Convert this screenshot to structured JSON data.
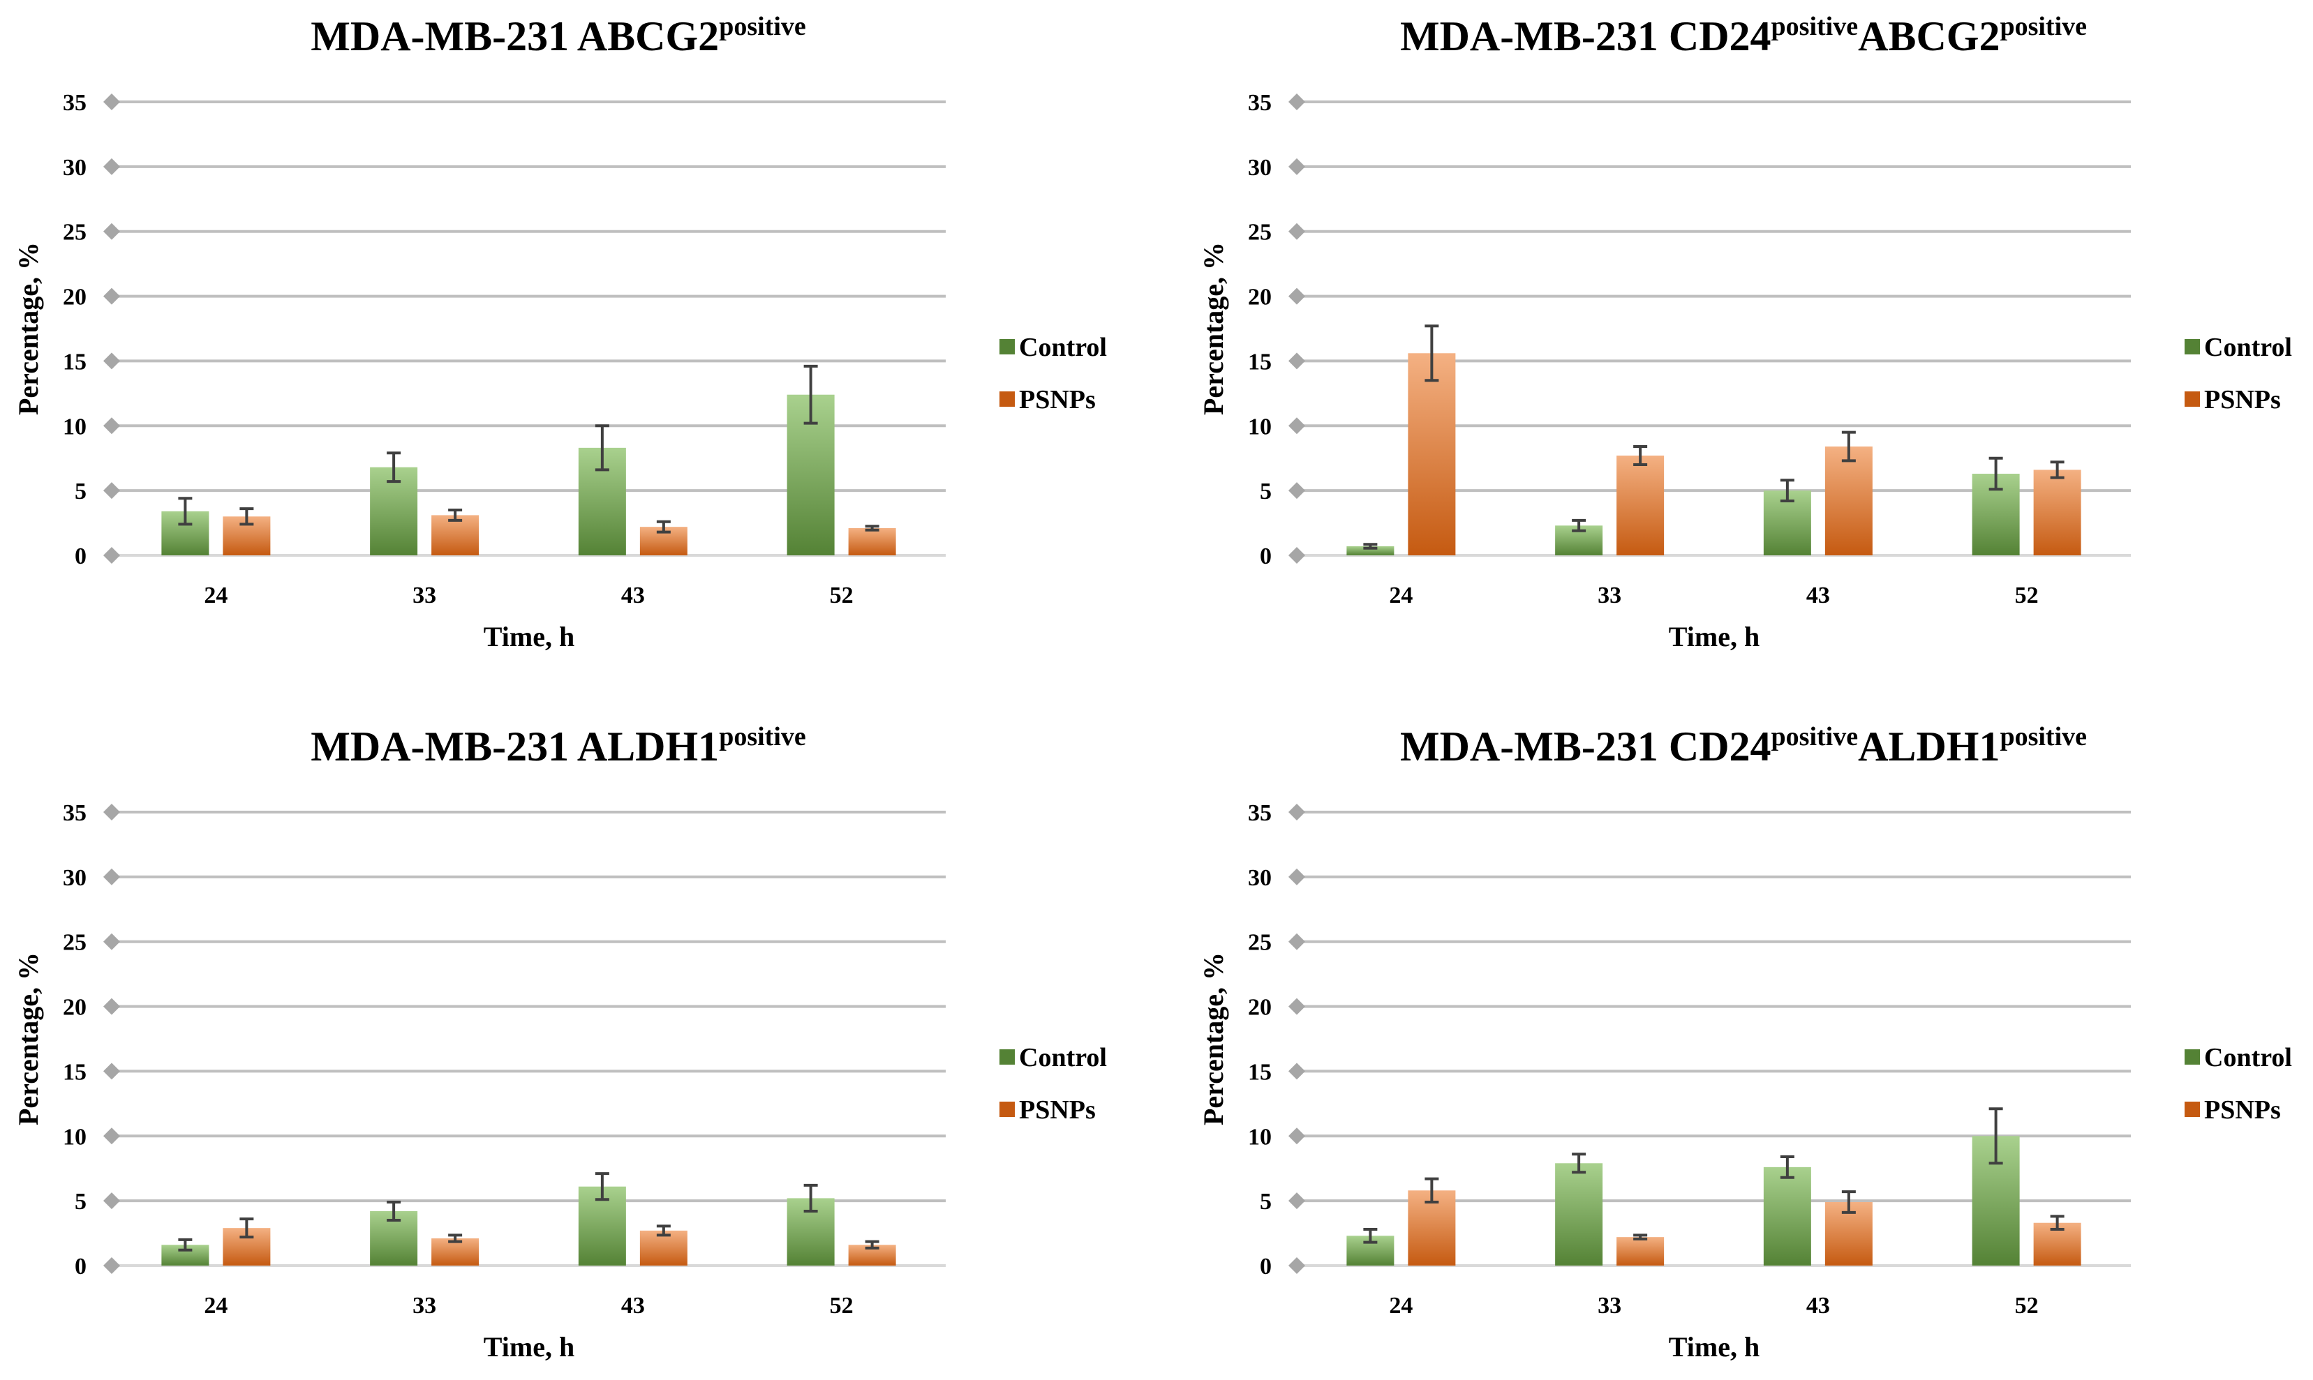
{
  "colors": {
    "control_light": "#a9d18e",
    "control_dark": "#548235",
    "psnps_light": "#f4b183",
    "psnps_dark": "#c55a11",
    "grid": "#bfbfbf",
    "tick_marker": "#a6a6a6",
    "error_bar": "#404040"
  },
  "chart_data": [
    {
      "type": "bar",
      "title": "MDA-MB-231  ABCG2",
      "title_superscripts": [
        "positive"
      ],
      "title_parts": [
        {
          "text": "MDA-MB-231  ABCG2",
          "sup": false
        },
        {
          "text": "positive",
          "sup": true
        }
      ],
      "xlabel": "Time, h",
      "ylabel": "Percentage, %",
      "categories": [
        "24",
        "33",
        "43",
        "52"
      ],
      "ylim": [
        0,
        35
      ],
      "yticks": [
        0,
        5,
        10,
        15,
        20,
        25,
        30,
        35
      ],
      "grid": true,
      "legend_position": "right",
      "series": [
        {
          "name": "Control",
          "values": [
            3.4,
            6.8,
            8.3,
            12.4
          ],
          "errors": [
            1.0,
            1.1,
            1.7,
            2.2
          ]
        },
        {
          "name": "PSNPs",
          "values": [
            3.0,
            3.1,
            2.2,
            2.1
          ],
          "errors": [
            0.6,
            0.4,
            0.4,
            0.15
          ]
        }
      ]
    },
    {
      "type": "bar",
      "title": "MDA-MB-231  CD24positiveABCG2positive",
      "title_superscripts": [
        "positive",
        "positive"
      ],
      "title_parts": [
        {
          "text": "MDA-MB-231  CD24",
          "sup": false
        },
        {
          "text": "positive",
          "sup": true
        },
        {
          "text": "ABCG2",
          "sup": false
        },
        {
          "text": "positive",
          "sup": true
        }
      ],
      "xlabel": "Time, h",
      "ylabel": "Percentage, %",
      "categories": [
        "24",
        "33",
        "43",
        "52"
      ],
      "ylim": [
        0,
        35
      ],
      "yticks": [
        0,
        5,
        10,
        15,
        20,
        25,
        30,
        35
      ],
      "grid": true,
      "legend_position": "right",
      "series": [
        {
          "name": "Control",
          "values": [
            0.7,
            2.3,
            5.0,
            6.3
          ],
          "errors": [
            0.15,
            0.4,
            0.8,
            1.2
          ]
        },
        {
          "name": "PSNPs",
          "values": [
            15.6,
            7.7,
            8.4,
            6.6
          ],
          "errors": [
            2.1,
            0.7,
            1.1,
            0.6
          ]
        }
      ]
    },
    {
      "type": "bar",
      "title": "MDA-MB-231  ALDH1",
      "title_superscripts": [
        "positive"
      ],
      "title_parts": [
        {
          "text": "MDA-MB-231  ALDH1",
          "sup": false
        },
        {
          "text": "positive",
          "sup": true
        }
      ],
      "xlabel": "Time, h",
      "ylabel": "Percentage, %",
      "categories": [
        "24",
        "33",
        "43",
        "52"
      ],
      "ylim": [
        0,
        35
      ],
      "yticks": [
        0,
        5,
        10,
        15,
        20,
        25,
        30,
        35
      ],
      "grid": true,
      "legend_position": "right",
      "series": [
        {
          "name": "Control",
          "values": [
            1.6,
            4.2,
            6.1,
            5.2
          ],
          "errors": [
            0.4,
            0.7,
            1.0,
            1.0
          ]
        },
        {
          "name": "PSNPs",
          "values": [
            2.9,
            2.1,
            2.7,
            1.6
          ],
          "errors": [
            0.7,
            0.25,
            0.35,
            0.25
          ]
        }
      ]
    },
    {
      "type": "bar",
      "title": "MDA-MB-231  CD24positiveALDH1positive",
      "title_superscripts": [
        "positive",
        "positive"
      ],
      "title_parts": [
        {
          "text": "MDA-MB-231  CD24",
          "sup": false
        },
        {
          "text": "positive",
          "sup": true
        },
        {
          "text": "ALDH1",
          "sup": false
        },
        {
          "text": "positive",
          "sup": true
        }
      ],
      "xlabel": "Time, h",
      "ylabel": "Percentage, %",
      "categories": [
        "24",
        "33",
        "43",
        "52"
      ],
      "ylim": [
        0,
        35
      ],
      "yticks": [
        0,
        5,
        10,
        15,
        20,
        25,
        30,
        35
      ],
      "grid": true,
      "legend_position": "right",
      "series": [
        {
          "name": "Control",
          "values": [
            2.3,
            7.9,
            7.6,
            10.0
          ],
          "errors": [
            0.5,
            0.7,
            0.8,
            2.1
          ]
        },
        {
          "name": "PSNPs",
          "values": [
            5.8,
            2.2,
            4.9,
            3.3
          ],
          "errors": [
            0.9,
            0.15,
            0.8,
            0.5
          ]
        }
      ]
    }
  ]
}
